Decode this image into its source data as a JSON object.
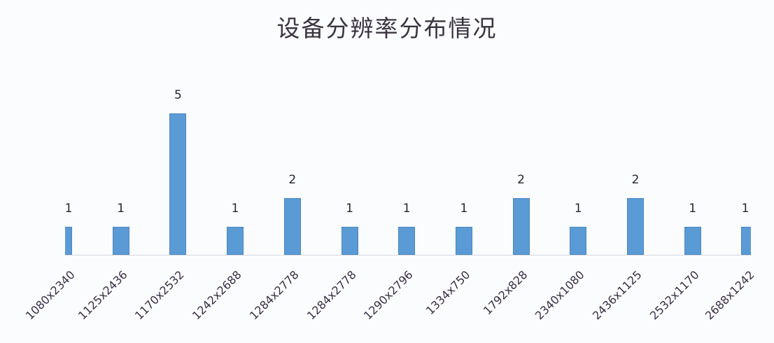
{
  "chart_data": {
    "type": "bar",
    "title": "设备分辨率分布情况",
    "xlabel": "",
    "ylabel": "",
    "categories": [
      "1080x2340",
      "1125x2436",
      "1170x2532",
      "1242x2688",
      "1284x2778",
      "1284x2778",
      "1290x2796",
      "1334x750",
      "1792x828",
      "2340x1080",
      "2436x1125",
      "2532x1170",
      "2688x1242"
    ],
    "values": [
      1,
      1,
      5,
      1,
      2,
      1,
      1,
      1,
      2,
      1,
      2,
      1,
      1
    ],
    "data_labels": [
      "1",
      "1",
      "5",
      "1",
      "2",
      "1",
      "1",
      "1",
      "2",
      "1",
      "2",
      "1",
      "1"
    ],
    "ylim": [
      0,
      5
    ],
    "grid": false,
    "legend": "none",
    "bar_color": "#5b9bd5",
    "x_tick_rotation": -45
  }
}
